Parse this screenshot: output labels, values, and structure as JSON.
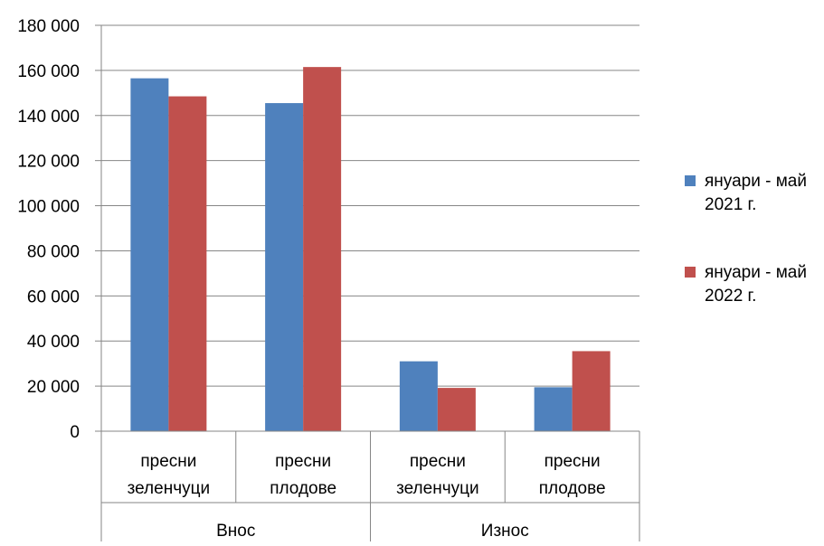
{
  "chart_data": {
    "type": "bar",
    "groups": [
      {
        "label": "Внос",
        "categories": [
          "пресни зеленчуци",
          "пресни плодове"
        ]
      },
      {
        "label": "Износ",
        "categories": [
          "пресни зеленчуци",
          "пресни плодове"
        ]
      }
    ],
    "category_lines": [
      [
        "пресни",
        "зеленчуци"
      ],
      [
        "пресни",
        "плодове"
      ],
      [
        "пресни",
        "зеленчуци"
      ],
      [
        "пресни",
        "плодове"
      ]
    ],
    "series": [
      {
        "name": "януари - май 2021 г.",
        "legend_lines": [
          "януари - май",
          "2021 г."
        ],
        "color": "#4f81bd",
        "values": [
          156500,
          145500,
          31000,
          19500
        ]
      },
      {
        "name": "януари - май 2022 г.",
        "legend_lines": [
          "януари - май",
          "2022 г."
        ],
        "color": "#c0504d",
        "values": [
          148500,
          161500,
          19200,
          35500
        ]
      }
    ],
    "ylim": [
      0,
      180000
    ],
    "yticks": [
      0,
      20000,
      40000,
      60000,
      80000,
      100000,
      120000,
      140000,
      160000,
      180000
    ],
    "ytick_labels": [
      "0",
      "20 000",
      "40 000",
      "60 000",
      "80 000",
      "100 000",
      "120 000",
      "140 000",
      "160 000",
      "180 000"
    ],
    "grid": true,
    "legend_position": "right"
  }
}
